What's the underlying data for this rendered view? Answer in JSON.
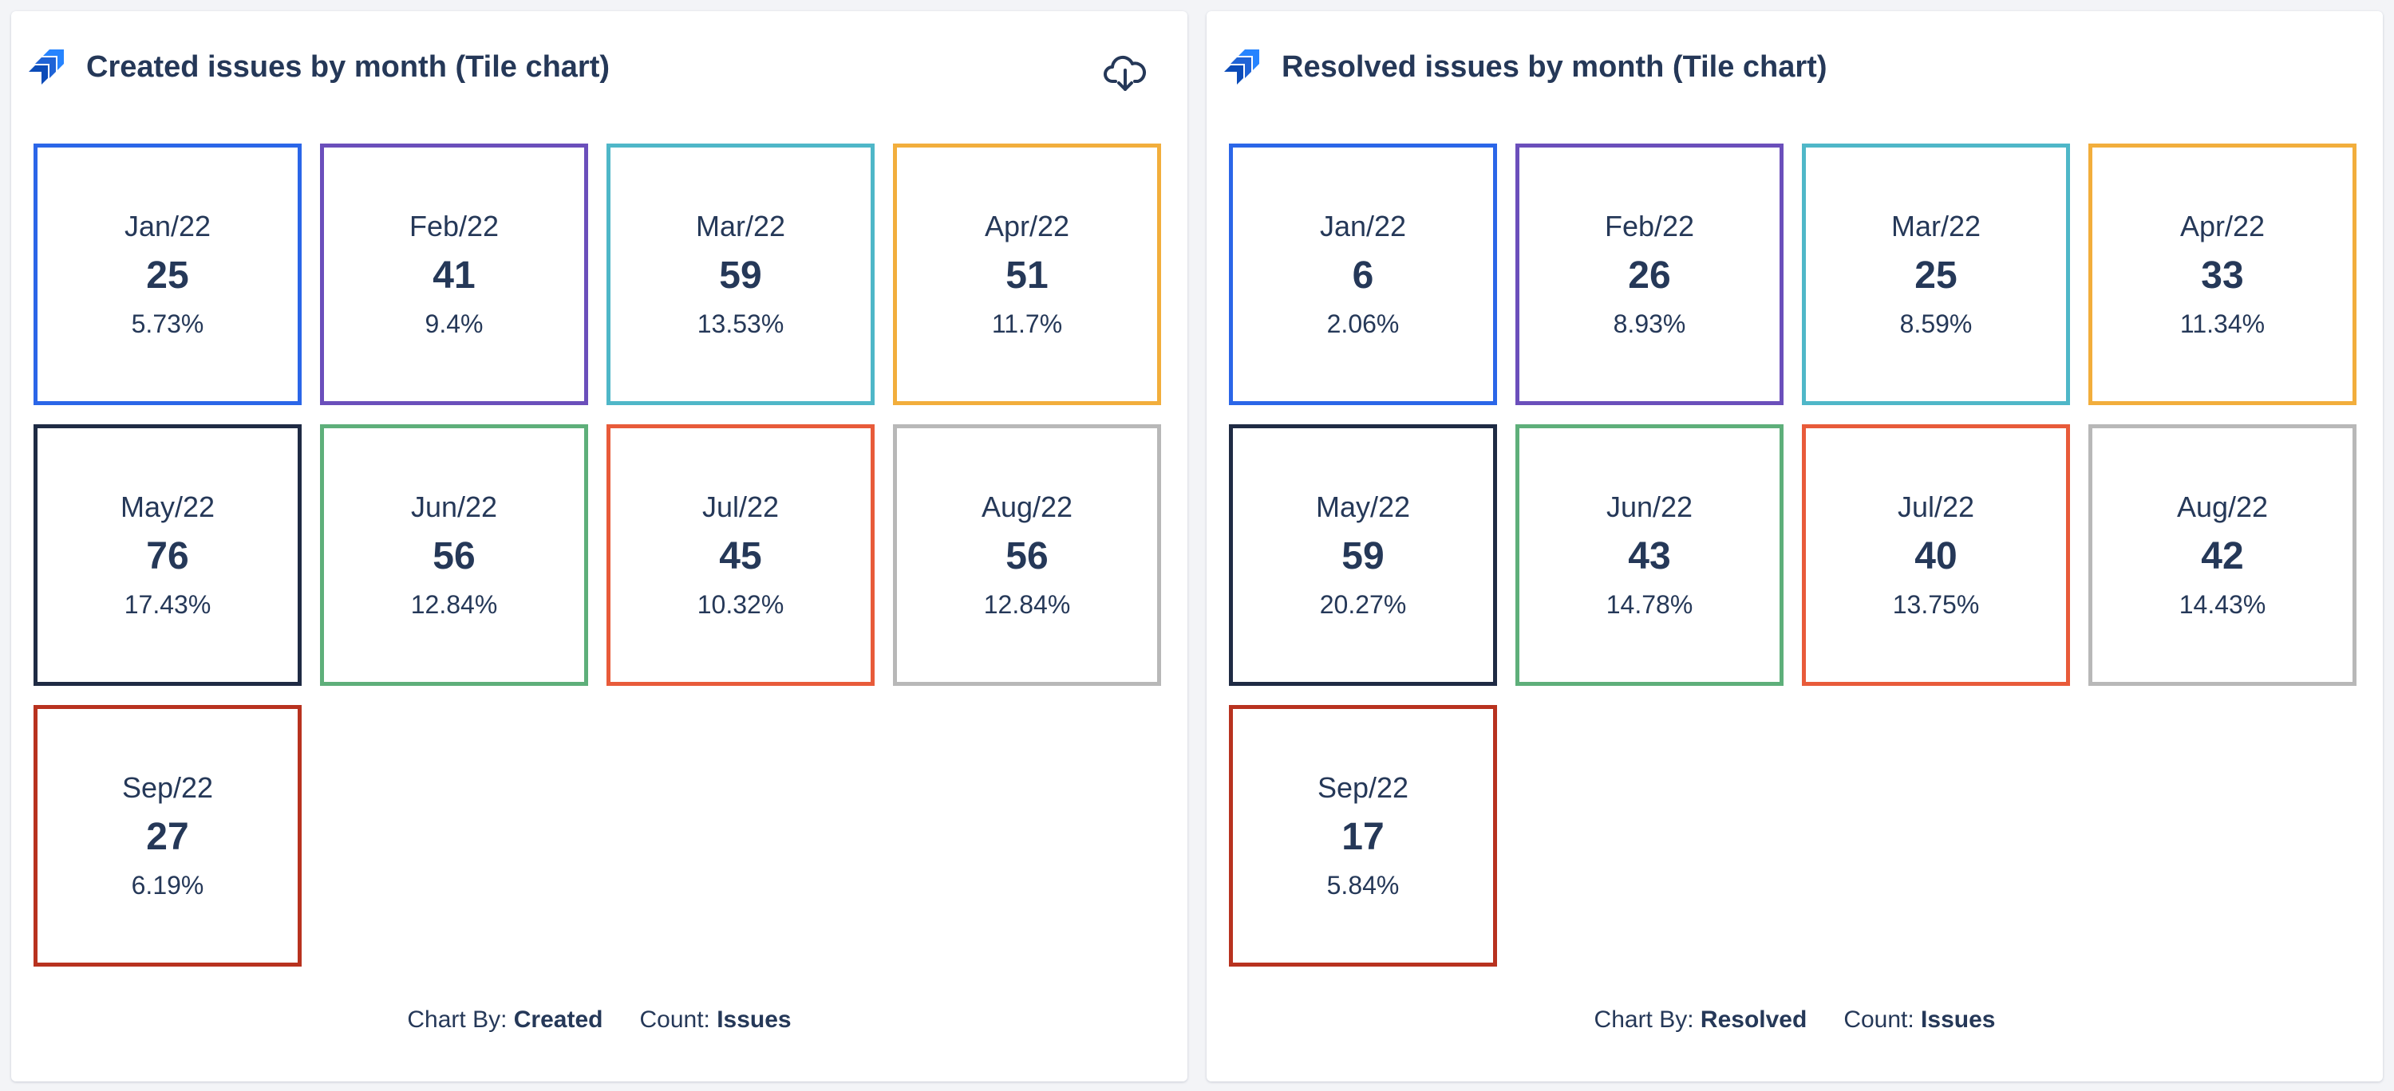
{
  "panels": [
    {
      "title": "Created issues by month (Tile chart)",
      "footer": {
        "chart_by_label": "Chart By:",
        "chart_by_value": "Created",
        "count_label": "Count:",
        "count_value": "Issues"
      },
      "icons": {
        "logo": "jira-logo-icon",
        "download": "cloud-download-icon"
      },
      "tiles": [
        {
          "label": "Jan/22",
          "value": "25",
          "pct": "5.73%",
          "color": "#2b66e8"
        },
        {
          "label": "Feb/22",
          "value": "41",
          "pct": "9.4%",
          "color": "#6b4fbb"
        },
        {
          "label": "Mar/22",
          "value": "59",
          "pct": "13.53%",
          "color": "#4fb7c8"
        },
        {
          "label": "Apr/22",
          "value": "51",
          "pct": "11.7%",
          "color": "#f2ae3c"
        },
        {
          "label": "May/22",
          "value": "76",
          "pct": "17.43%",
          "color": "#1f2b44"
        },
        {
          "label": "Jun/22",
          "value": "56",
          "pct": "12.84%",
          "color": "#5eaf7a"
        },
        {
          "label": "Jul/22",
          "value": "45",
          "pct": "10.32%",
          "color": "#e85b3a"
        },
        {
          "label": "Aug/22",
          "value": "56",
          "pct": "12.84%",
          "color": "#b8b8b8"
        },
        {
          "label": "Sep/22",
          "value": "27",
          "pct": "6.19%",
          "color": "#b8321f"
        }
      ]
    },
    {
      "title": "Resolved issues by month (Tile chart)",
      "footer": {
        "chart_by_label": "Chart By:",
        "chart_by_value": "Resolved",
        "count_label": "Count:",
        "count_value": "Issues"
      },
      "icons": {
        "logo": "jira-logo-icon"
      },
      "tiles": [
        {
          "label": "Jan/22",
          "value": "6",
          "pct": "2.06%",
          "color": "#2b66e8"
        },
        {
          "label": "Feb/22",
          "value": "26",
          "pct": "8.93%",
          "color": "#6b4fbb"
        },
        {
          "label": "Mar/22",
          "value": "25",
          "pct": "8.59%",
          "color": "#4fb7c8"
        },
        {
          "label": "Apr/22",
          "value": "33",
          "pct": "11.34%",
          "color": "#f2ae3c"
        },
        {
          "label": "May/22",
          "value": "59",
          "pct": "20.27%",
          "color": "#1f2b44"
        },
        {
          "label": "Jun/22",
          "value": "43",
          "pct": "14.78%",
          "color": "#5eaf7a"
        },
        {
          "label": "Jul/22",
          "value": "40",
          "pct": "13.75%",
          "color": "#e85b3a"
        },
        {
          "label": "Aug/22",
          "value": "42",
          "pct": "14.43%",
          "color": "#b8b8b8"
        },
        {
          "label": "Sep/22",
          "value": "17",
          "pct": "5.84%",
          "color": "#b8321f"
        }
      ]
    }
  ]
}
